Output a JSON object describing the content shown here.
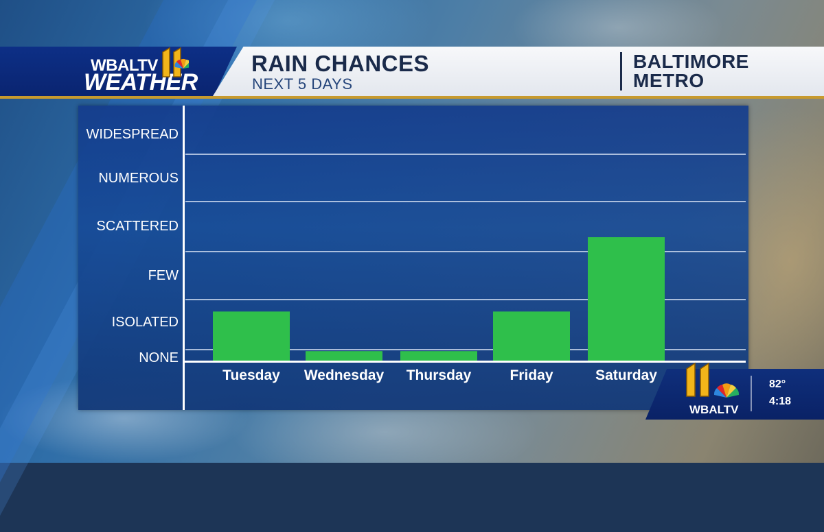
{
  "header": {
    "logo_top": "WBALTV",
    "logo_main": "WEATHER",
    "title": "RAIN CHANCES",
    "subtitle": "NEXT 5 DAYS",
    "region_line1": "BALTIMORE",
    "region_line2": "METRO"
  },
  "bug": {
    "logo": "WBALTV",
    "temperature": "82°",
    "time": "4:18"
  },
  "colors": {
    "bar": "#2fbf4b",
    "panel": "#163f8a",
    "accent": "#c79a2e",
    "logo_gold": "#f2b51a"
  },
  "chart_data": {
    "type": "bar",
    "categories": [
      "Tuesday",
      "Wednesday",
      "Thursday",
      "Friday",
      "Saturday"
    ],
    "values": [
      1.2,
      0.15,
      0.15,
      1.2,
      2.75
    ],
    "y_levels": [
      "NONE",
      "ISOLATED",
      "FEW",
      "SCATTERED",
      "NUMEROUS",
      "WIDESPREAD"
    ],
    "ylim": [
      0,
      5
    ],
    "grid": true,
    "title": "RAIN CHANCES",
    "xlabel": "",
    "ylabel": ""
  }
}
